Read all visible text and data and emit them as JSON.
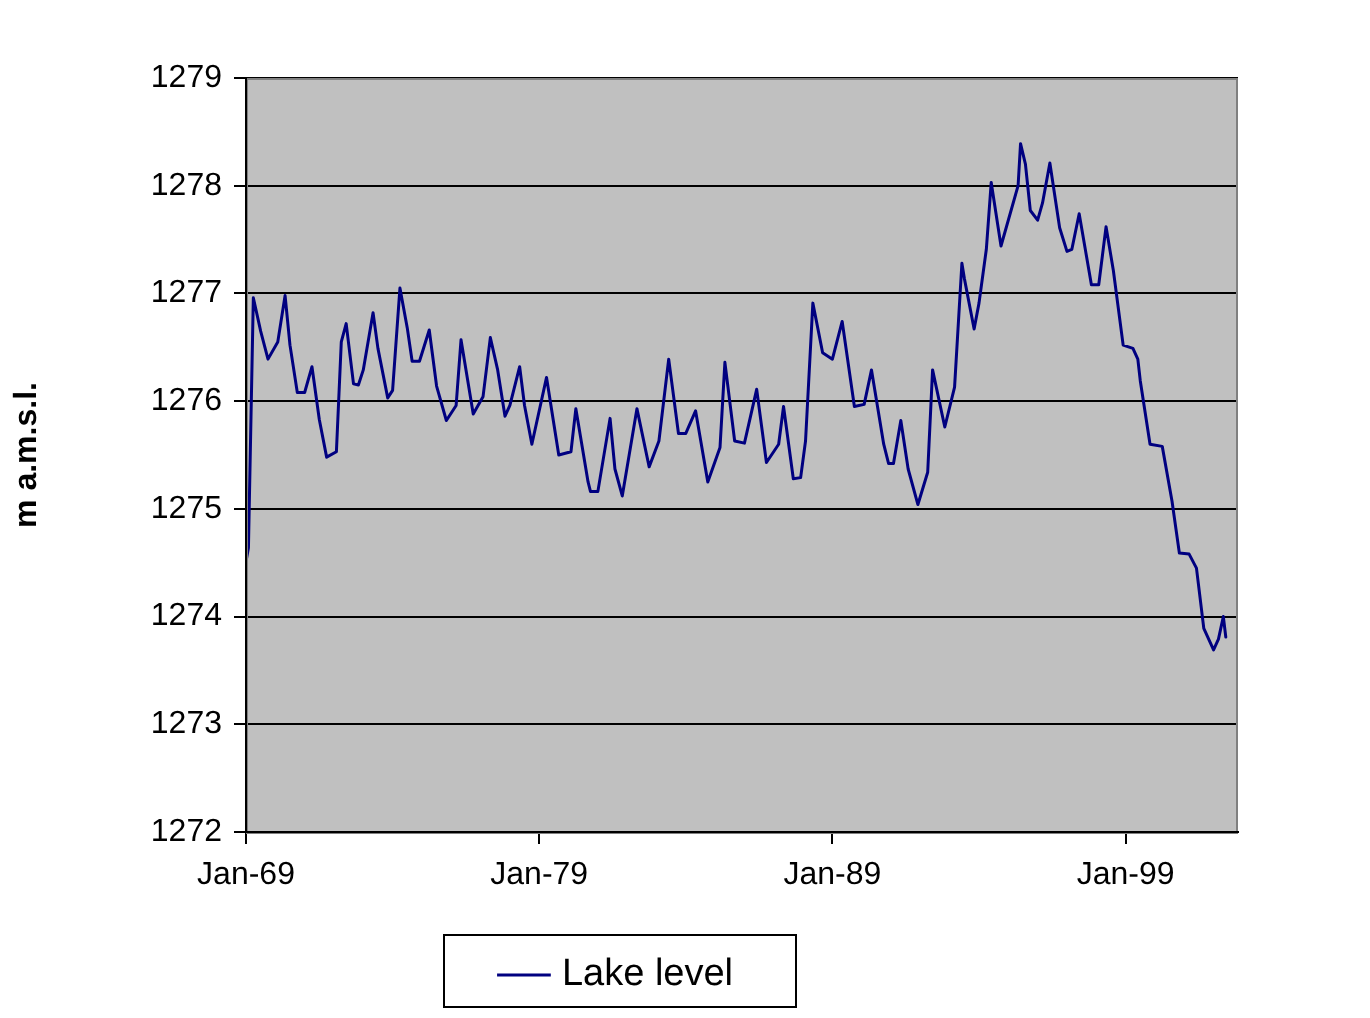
{
  "chart_data": {
    "type": "line",
    "ylabel": "m a.m.s.l.",
    "x": [
      "1969-01",
      "1969-02",
      "1969-04",
      "1969-07",
      "1969-10",
      "1970-02",
      "1970-05",
      "1970-07",
      "1970-10",
      "1971-01",
      "1971-04",
      "1971-07",
      "1971-10",
      "1972-02",
      "1972-04",
      "1972-06",
      "1972-09",
      "1972-11",
      "1973-01",
      "1973-05",
      "1973-07",
      "1973-11",
      "1974-01",
      "1974-04",
      "1974-07",
      "1974-09",
      "1974-12",
      "1975-04",
      "1975-07",
      "1975-11",
      "1976-03",
      "1976-05",
      "1976-10",
      "1977-02",
      "1977-05",
      "1977-08",
      "1977-11",
      "1978-01",
      "1978-05",
      "1978-07",
      "1978-10",
      "1979-04",
      "1979-09",
      "1980-02",
      "1980-04",
      "1980-09",
      "1980-10",
      "1981-01",
      "1981-06",
      "1981-08",
      "1981-11",
      "1982-05",
      "1982-10",
      "1983-02",
      "1983-06",
      "1983-10",
      "1984-01",
      "1984-05",
      "1984-10",
      "1985-03",
      "1985-05",
      "1985-09",
      "1986-01",
      "1986-06",
      "1986-10",
      "1987-03",
      "1987-05",
      "1987-09",
      "1987-12",
      "1988-02",
      "1988-05",
      "1988-09",
      "1989-01",
      "1989-05",
      "1989-10",
      "1990-02",
      "1990-05",
      "1990-10",
      "1990-12",
      "1991-02",
      "1991-05",
      "1991-08",
      "1991-12",
      "1992-04",
      "1992-06",
      "1992-11",
      "1993-03",
      "1993-06",
      "1993-07",
      "1993-11",
      "1994-01",
      "1994-04",
      "1994-06",
      "1994-10",
      "1995-05",
      "1995-06",
      "1995-08",
      "1995-10",
      "1996-01",
      "1996-03",
      "1996-06",
      "1996-10",
      "1997-01",
      "1997-03",
      "1997-06",
      "1997-11",
      "1998-02",
      "1998-05",
      "1998-08",
      "1998-12",
      "1999-04",
      "1999-06",
      "1999-07",
      "1999-11",
      "2000-04",
      "2000-08",
      "2000-11",
      "2001-03",
      "2001-06",
      "2001-09",
      "2002-01",
      "2002-03",
      "2002-05",
      "2002-06"
    ],
    "series": [
      {
        "name": "Lake level",
        "color": "#000080",
        "values": [
          1274.51,
          1274.64,
          1276.96,
          1276.65,
          1276.39,
          1276.55,
          1276.98,
          1276.52,
          1276.08,
          1276.08,
          1276.32,
          1275.83,
          1275.48,
          1275.53,
          1276.55,
          1276.72,
          1276.16,
          1276.15,
          1276.29,
          1276.82,
          1276.49,
          1276.03,
          1276.1,
          1277.05,
          1276.68,
          1276.37,
          1276.37,
          1276.66,
          1276.14,
          1275.82,
          1275.96,
          1276.57,
          1275.88,
          1276.04,
          1276.59,
          1276.29,
          1275.86,
          1275.96,
          1276.32,
          1275.96,
          1275.6,
          1276.22,
          1275.5,
          1275.53,
          1275.93,
          1275.25,
          1275.16,
          1275.16,
          1275.84,
          1275.37,
          1275.12,
          1275.93,
          1275.39,
          1275.63,
          1276.39,
          1275.7,
          1275.7,
          1275.91,
          1275.25,
          1275.57,
          1276.36,
          1275.63,
          1275.61,
          1276.11,
          1275.43,
          1275.6,
          1275.95,
          1275.28,
          1275.29,
          1275.63,
          1276.91,
          1276.45,
          1276.39,
          1276.74,
          1275.95,
          1275.97,
          1276.29,
          1275.6,
          1275.42,
          1275.42,
          1275.82,
          1275.37,
          1275.04,
          1275.34,
          1276.29,
          1275.76,
          1276.13,
          1277.28,
          1277.14,
          1276.67,
          1276.91,
          1277.41,
          1278.03,
          1277.44,
          1278.0,
          1278.39,
          1278.2,
          1277.77,
          1277.68,
          1277.84,
          1278.21,
          1277.61,
          1277.39,
          1277.41,
          1277.74,
          1277.08,
          1277.08,
          1277.62,
          1277.21,
          1276.52,
          1276.49,
          1276.39,
          1276.19,
          1275.6,
          1275.58,
          1275.07,
          1274.59,
          1274.58,
          1274.45,
          1273.89,
          1273.69,
          1273.79,
          1274.0,
          1273.81
        ]
      }
    ],
    "xlim": [
      "1969-01",
      "2002-11"
    ],
    "xticks": [
      {
        "value": "1969-01",
        "label": "Jan-69"
      },
      {
        "value": "1979-01",
        "label": "Jan-79"
      },
      {
        "value": "1989-01",
        "label": "Jan-89"
      },
      {
        "value": "1999-01",
        "label": "Jan-99"
      }
    ],
    "ylim": [
      1272,
      1279
    ],
    "yticks": [
      1272,
      1273,
      1274,
      1275,
      1276,
      1277,
      1278,
      1279
    ],
    "grid": "y",
    "legend": "bottom",
    "marker": "none",
    "line_style": "solid"
  }
}
